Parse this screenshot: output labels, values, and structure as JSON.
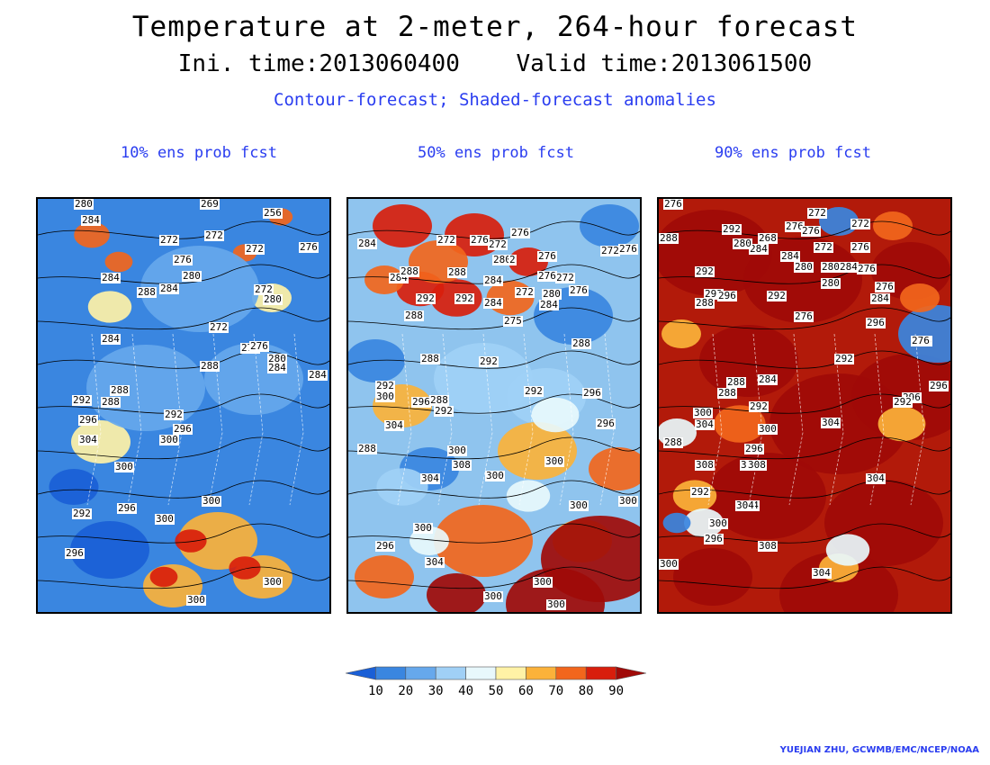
{
  "header": {
    "title": "Temperature at 2-meter, 264-hour forecast",
    "init_time": "Ini. time:2013060400",
    "valid_time": "Valid time:2013061500",
    "description": "Contour-forecast; Shaded-forecast anomalies"
  },
  "panels": [
    {
      "title": "10% ens prob fcst",
      "base_color": "#3a86e0",
      "contour_labels": [
        "280",
        "269",
        "256",
        "284",
        "272",
        "272",
        "272",
        "276",
        "284",
        "276",
        "280",
        "272",
        "280",
        "288",
        "284",
        "276",
        "272",
        "276",
        "280",
        "284",
        "288",
        "288",
        "284",
        "284",
        "292",
        "288",
        "292",
        "296",
        "296",
        "300",
        "304",
        "300",
        "292",
        "300",
        "296",
        "296",
        "300",
        "300",
        "300"
      ]
    },
    {
      "title": "50% ens prob fcst",
      "base_color": "#8fc4ee",
      "contour_labels": [
        "284",
        "272",
        "276",
        "272",
        "276",
        "272",
        "276",
        "284",
        "288",
        "288",
        "280",
        "2",
        "276",
        "272",
        "276",
        "284",
        "292",
        "292",
        "284",
        "272",
        "280",
        "276",
        "288",
        "275",
        "284",
        "288",
        "288",
        "292",
        "292",
        "300",
        "296",
        "288",
        "292",
        "292",
        "296",
        "288",
        "304",
        "300",
        "308",
        "300",
        "304",
        "300",
        "296",
        "300",
        "300",
        "296",
        "300",
        "304",
        "300",
        "300",
        "300"
      ]
    },
    {
      "title": "90% ens prob fcst",
      "base_color": "#b21a0a",
      "contour_labels": [
        "276",
        "272",
        "288",
        "292",
        "268",
        "276",
        "276",
        "284",
        "280",
        "284",
        "272",
        "272",
        "276",
        "292",
        "280",
        "280",
        "276",
        "292",
        "296",
        "292",
        "276",
        "280",
        "284",
        "276",
        "288",
        "288",
        "296",
        "284",
        "276",
        "292",
        "284",
        "288",
        "288",
        "292",
        "300",
        "300",
        "296",
        "304",
        "296",
        "300",
        "292",
        "308",
        "304",
        "304",
        "296",
        "288",
        "304",
        "308",
        "304",
        "292",
        "304",
        "300",
        "296",
        "308",
        "304",
        "300"
      ]
    }
  ],
  "colorbar": {
    "labels": [
      "10",
      "20",
      "30",
      "40",
      "50",
      "60",
      "70",
      "80",
      "90"
    ],
    "colors": [
      "#1a5fd6",
      "#3a86e0",
      "#66a8ec",
      "#a0d0f6",
      "#e8f8fc",
      "#fff2a6",
      "#fbb23a",
      "#f2661c",
      "#d81e0c",
      "#a00a08"
    ]
  },
  "credit": "YUEJIAN ZHU, GCWMB/EMC/NCEP/NOAA"
}
